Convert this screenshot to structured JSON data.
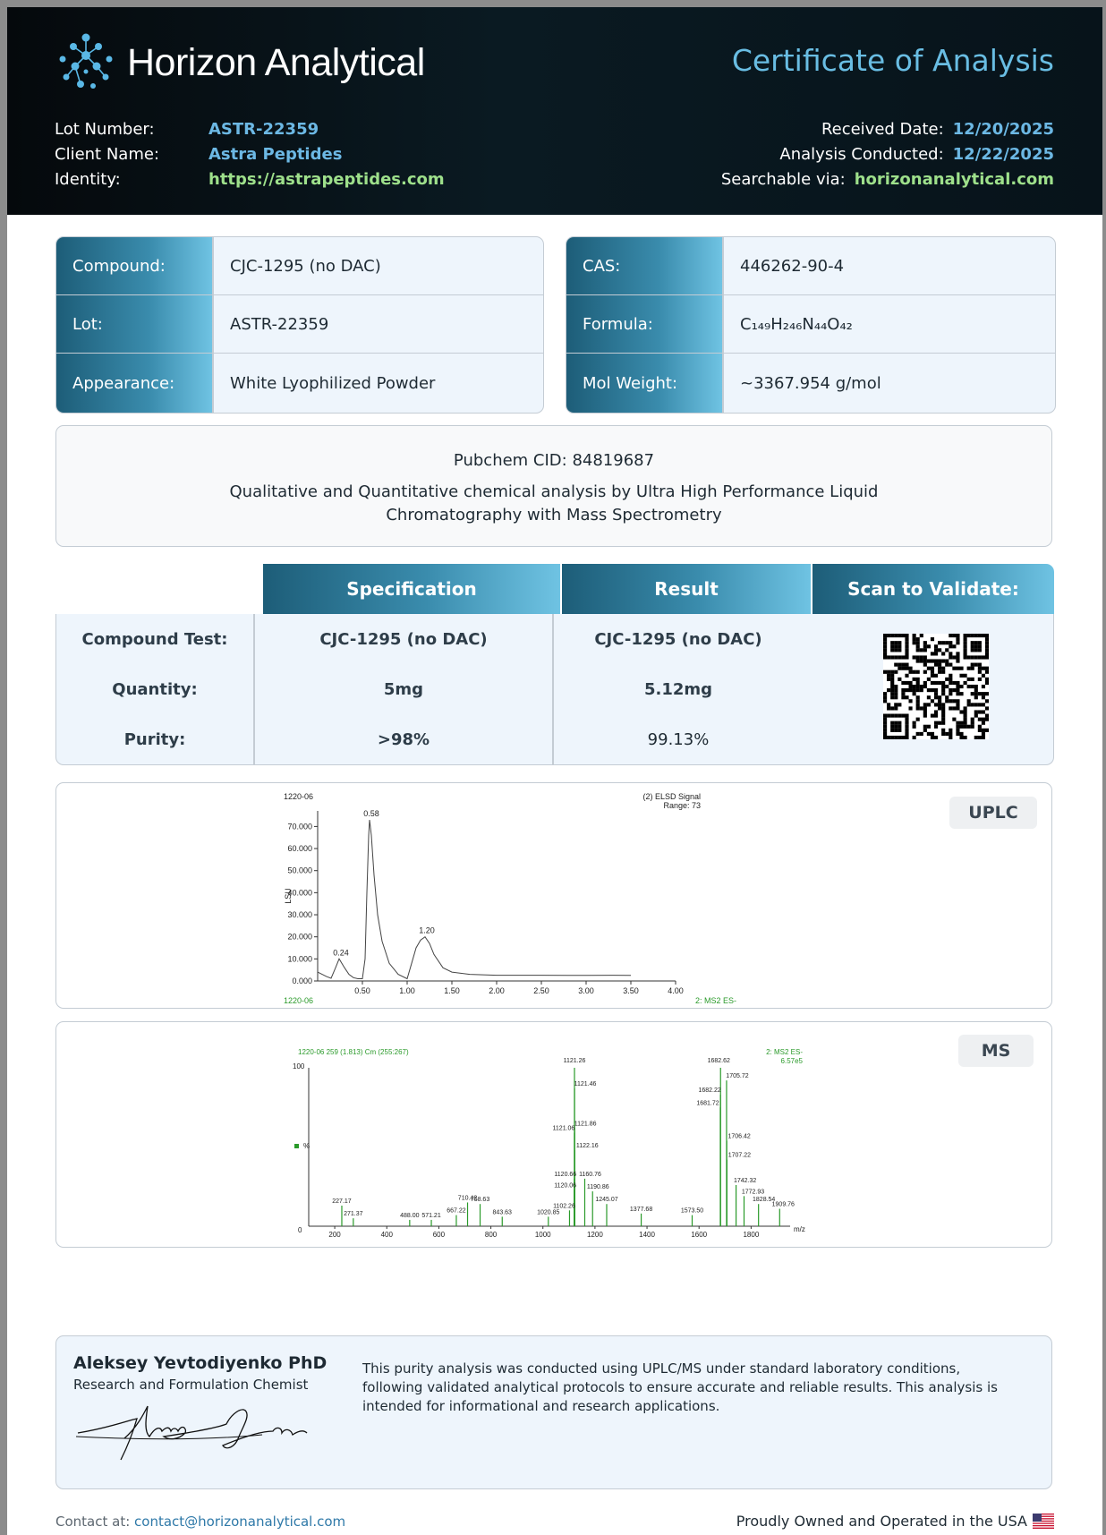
{
  "header": {
    "brand": "Horizon Analytical",
    "title": "Certificate of Analysis",
    "left_rows": [
      {
        "label": "Lot Number:",
        "value": "ASTR-22359"
      },
      {
        "label": "Client Name:",
        "value": "Astra Peptides"
      },
      {
        "label": "Identity:",
        "value": "https://astrapeptides.com"
      }
    ],
    "right_rows": [
      {
        "label": "Received Date:",
        "value": "12/20/2025"
      },
      {
        "label": "Analysis Conducted:",
        "value": "12/22/2025"
      },
      {
        "label": "Searchable via:",
        "value": "horizonanalytical.com"
      }
    ]
  },
  "info_left": [
    {
      "label": "Compound:",
      "value": "CJC-1295 (no DAC)"
    },
    {
      "label": "Lot:",
      "value": "ASTR-22359"
    },
    {
      "label": "Appearance:",
      "value": "White Lyophilized Powder"
    }
  ],
  "info_right": [
    {
      "label": "CAS:",
      "value": "446262-90-4"
    },
    {
      "label": "Formula:",
      "value": "C₁₄₉H₂₄₆N₄₄O₄₂"
    },
    {
      "label": "Mol Weight:",
      "value": "~3367.954 g/mol"
    }
  ],
  "description": {
    "cid": "Pubchem CID: 84819687",
    "text": "Qualitative and Quantitative chemical analysis by Ultra High Performance Liquid Chromatography with Mass Spectrometry"
  },
  "spec_table": {
    "headers": [
      "Specification",
      "Result",
      "Scan to Validate:"
    ],
    "rows": [
      {
        "label": "Compound Test:",
        "spec": "CJC-1295 (no DAC)",
        "result": "CJC-1295 (no DAC)"
      },
      {
        "label": "Quantity:",
        "spec": "5mg",
        "result": "5.12mg"
      },
      {
        "label": "Purity:",
        "spec": ">98%",
        "result": "99.13%"
      }
    ]
  },
  "uplc": {
    "badge": "UPLC",
    "sample_id": "1220-06",
    "sample_id_footer": "1220-06",
    "signal_label": "(2) ELSD Signal",
    "range_label": "Range: 73",
    "footer_right": "2: MS2 ES-",
    "ylabel": "LSU",
    "peak_labels": [
      "0.58",
      "1.20",
      "0.24"
    ]
  },
  "ms": {
    "badge": "MS",
    "header_left": "1220-06 259 (1.813) Cm (255:267)",
    "header_right_1": "2: MS2 ES-",
    "header_right_2": "6.57e5",
    "y_top": "100",
    "y_bottom": "0",
    "y_unit": "%",
    "x_unit": "m/z"
  },
  "chart_data": [
    {
      "type": "line",
      "title": "1220-06",
      "ylabel": "LSU",
      "xlim": [
        0,
        4.0
      ],
      "ylim": [
        0,
        73
      ],
      "x_ticks": [
        "0.50",
        "1.00",
        "1.50",
        "2.00",
        "2.50",
        "3.00",
        "3.50",
        "4.00"
      ],
      "y_ticks": [
        "0.000",
        "10.000",
        "20.000",
        "30.000",
        "40.000",
        "50.000",
        "60.000",
        "70.000"
      ],
      "x": [
        0.0,
        0.05,
        0.1,
        0.15,
        0.2,
        0.24,
        0.3,
        0.35,
        0.4,
        0.45,
        0.5,
        0.53,
        0.55,
        0.57,
        0.58,
        0.6,
        0.63,
        0.67,
        0.72,
        0.8,
        0.9,
        1.0,
        1.05,
        1.1,
        1.15,
        1.2,
        1.25,
        1.3,
        1.4,
        1.5,
        1.7,
        2.0,
        2.5,
        3.0,
        3.3,
        3.5
      ],
      "y": [
        4.0,
        3.0,
        2.0,
        1.2,
        6.0,
        10.0,
        6.0,
        3.0,
        1.5,
        1.0,
        1.0,
        10.0,
        40.0,
        66.0,
        73.0,
        66.0,
        48.0,
        30.0,
        18.0,
        8.0,
        3.0,
        1.0,
        8.0,
        15.0,
        18.5,
        20.0,
        17.0,
        12.0,
        6.0,
        4.0,
        3.0,
        2.6,
        2.6,
        2.5,
        2.6,
        2.5
      ],
      "annotations": [
        {
          "x": 0.24,
          "label": "0.24"
        },
        {
          "x": 0.58,
          "label": "0.58"
        },
        {
          "x": 1.2,
          "label": "1.20"
        }
      ]
    },
    {
      "type": "bar",
      "title": "1220-06 259 (1.813) Cm (255:267)",
      "xlabel": "m/z",
      "ylabel": "%",
      "xlim": [
        100,
        1950
      ],
      "ylim": [
        0,
        100
      ],
      "x_ticks": [
        "200",
        "400",
        "600",
        "800",
        "1000",
        "1200",
        "1400",
        "1600",
        "1800"
      ],
      "peaks": [
        {
          "mz": 1121.26,
          "rel": 100,
          "label": "1121.26"
        },
        {
          "mz": 1121.46,
          "rel": 87,
          "label": "1121.46"
        },
        {
          "mz": 1121.86,
          "rel": 62,
          "label": "1121.86"
        },
        {
          "mz": 1121.06,
          "rel": 59,
          "label": "1121.06"
        },
        {
          "mz": 1122.16,
          "rel": 48,
          "label": "1122.16"
        },
        {
          "mz": 1120.66,
          "rel": 30,
          "label": "1120.66"
        },
        {
          "mz": 1120.06,
          "rel": 23,
          "label": "1120.06"
        },
        {
          "mz": 1160.76,
          "rel": 30,
          "label": "1160.76"
        },
        {
          "mz": 1190.86,
          "rel": 22,
          "label": "1190.86"
        },
        {
          "mz": 1245.07,
          "rel": 14,
          "label": "1245.07"
        },
        {
          "mz": 1102.26,
          "rel": 10,
          "label": "1102.26"
        },
        {
          "mz": 1377.68,
          "rel": 8,
          "label": "1377.68"
        },
        {
          "mz": 1573.5,
          "rel": 7,
          "label": "1573.50"
        },
        {
          "mz": 1682.62,
          "rel": 100,
          "label": "1682.62"
        },
        {
          "mz": 1705.72,
          "rel": 92,
          "label": "1705.72"
        },
        {
          "mz": 1682.22,
          "rel": 83,
          "label": "1682.22"
        },
        {
          "mz": 1681.72,
          "rel": 75,
          "label": "1681.72"
        },
        {
          "mz": 1706.42,
          "rel": 54,
          "label": "1706.42"
        },
        {
          "mz": 1707.22,
          "rel": 42,
          "label": "1707.22"
        },
        {
          "mz": 1742.32,
          "rel": 26,
          "label": "1742.32"
        },
        {
          "mz": 1772.93,
          "rel": 19,
          "label": "1772.93"
        },
        {
          "mz": 1828.54,
          "rel": 14,
          "label": "1828.54"
        },
        {
          "mz": 1909.76,
          "rel": 11,
          "label": "1909.76"
        },
        {
          "mz": 227.17,
          "rel": 13,
          "label": "227.17"
        },
        {
          "mz": 271.37,
          "rel": 5,
          "label": "271.37"
        },
        {
          "mz": 488.0,
          "rel": 4,
          "label": "488.00"
        },
        {
          "mz": 571.21,
          "rel": 4,
          "label": "571.21"
        },
        {
          "mz": 667.22,
          "rel": 7,
          "label": "667.22"
        },
        {
          "mz": 710.42,
          "rel": 15,
          "label": "710.42"
        },
        {
          "mz": 758.63,
          "rel": 14,
          "label": "758.63"
        },
        {
          "mz": 843.63,
          "rel": 6,
          "label": "843.63"
        },
        {
          "mz": 1020.85,
          "rel": 6,
          "label": "1020.85"
        }
      ]
    }
  ],
  "signatory": {
    "name": "Aleksey Yevtodiyenko PhD",
    "role": "Research and Formulation Chemist",
    "statement": "This purity analysis was conducted using UPLC/MS under standard laboratory conditions, following validated analytical protocols to ensure accurate and reliable results. This analysis is intended for informational and research applications.",
    "signature_text": "Aleksey Yevtodiyenko"
  },
  "footer": {
    "contact_label": "Contact at:",
    "contact_email": "contact@horizonanalytical.com",
    "tagline": "Proudly Owned and Operated in the USA"
  },
  "colors": {
    "header_bg": "#05090c",
    "accent_blue": "#69bde3",
    "accent_green": "#9ee08b",
    "table_gradient_dark": "#1d5d78",
    "table_gradient_light": "#6fc3e3",
    "ms_green": "#2a9a2a"
  }
}
